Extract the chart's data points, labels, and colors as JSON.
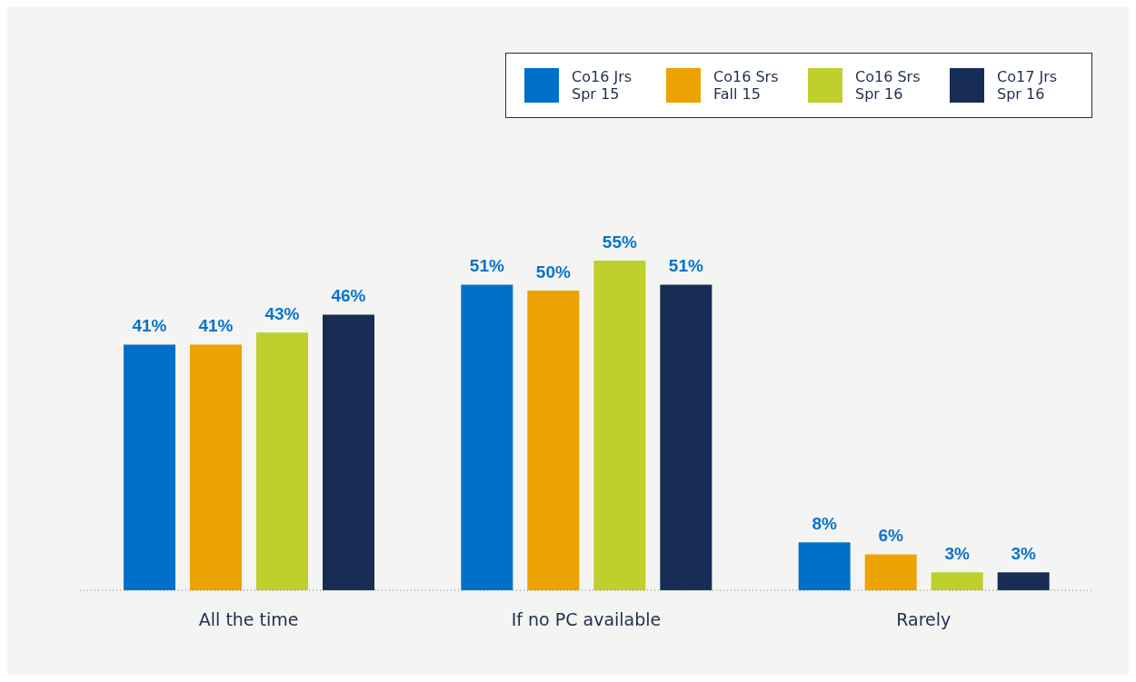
{
  "chart_data": {
    "type": "bar",
    "categories": [
      "All the time",
      "If no PC available",
      "Rarely"
    ],
    "series": [
      {
        "name": "Co16 Jrs Spr 15",
        "color": "#0070c9",
        "values": [
          41,
          51,
          8
        ],
        "value_labels": [
          "41%",
          "51%",
          "8%"
        ]
      },
      {
        "name": "Co16 Srs Fall 15",
        "color": "#eca200",
        "values": [
          41,
          50,
          6
        ],
        "value_labels": [
          "41%",
          "50%",
          "6%"
        ]
      },
      {
        "name": "Co16 Srs Spr 16",
        "color": "#bfcf2b",
        "values": [
          43,
          55,
          3
        ],
        "value_labels": [
          "43%",
          "55%",
          "3%"
        ]
      },
      {
        "name": "Co17 Jrs Spr 16",
        "color": "#172d55",
        "values": [
          46,
          51,
          3
        ],
        "value_labels": [
          "46%",
          "51%",
          "3%"
        ]
      }
    ],
    "legend": "top right"
  }
}
